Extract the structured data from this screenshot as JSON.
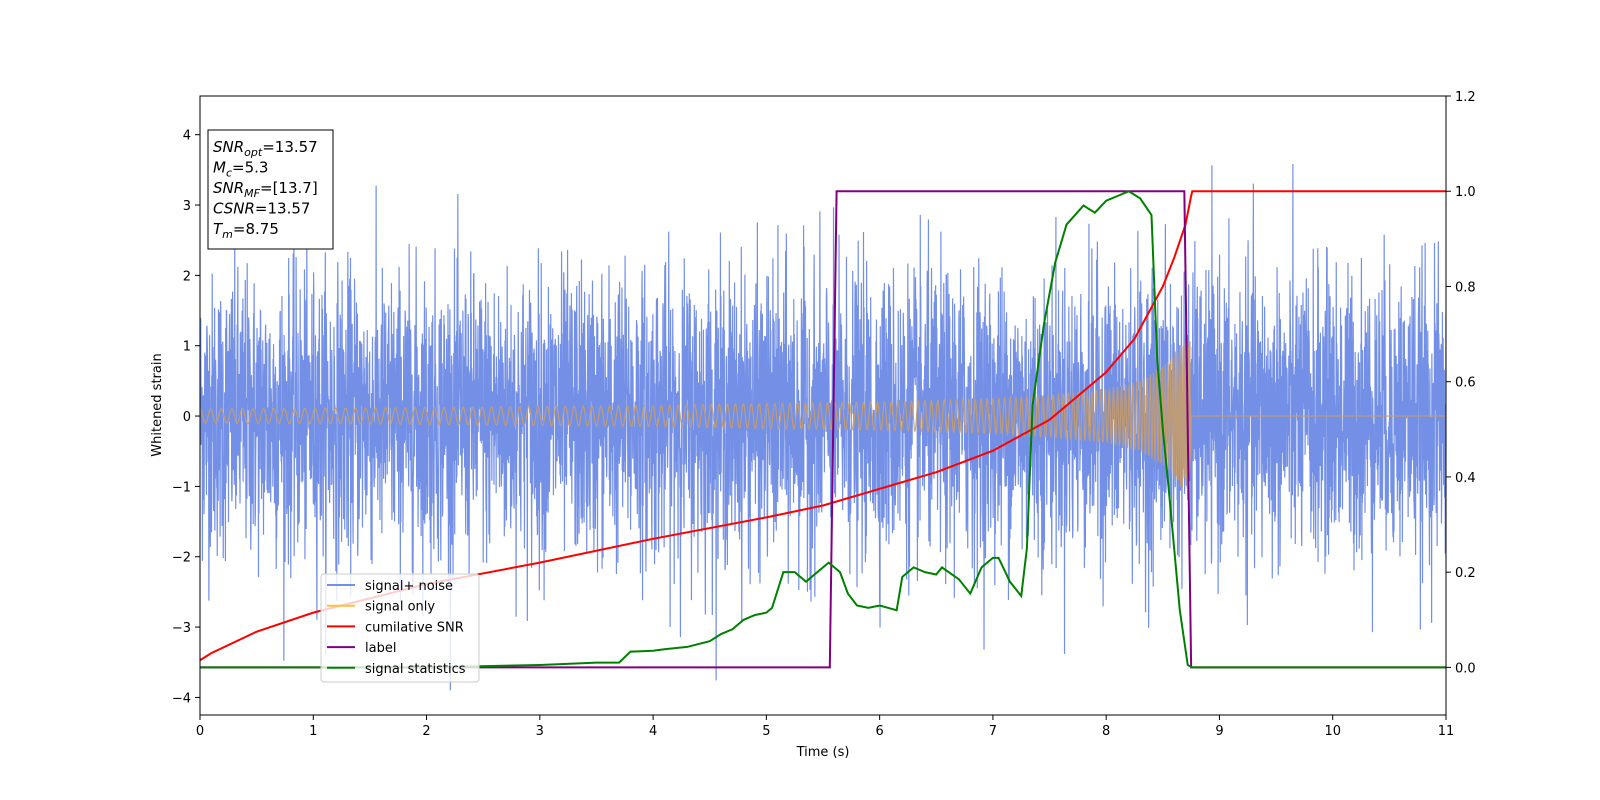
{
  "chart_data": {
    "type": "line",
    "xlabel": "Time (s)",
    "ylabel": "Whitened strain",
    "xlim": [
      0,
      11
    ],
    "ylim": [
      -4.25,
      4.55
    ],
    "y2lim": [
      -0.1,
      1.2
    ],
    "x_ticks": [
      "0",
      "1",
      "2",
      "3",
      "4",
      "5",
      "6",
      "7",
      "8",
      "9",
      "10",
      "11"
    ],
    "y_ticks": [
      "−4",
      "−3",
      "−2",
      "−1",
      "0",
      "1",
      "2",
      "3",
      "4"
    ],
    "y2_ticks": [
      "0.0",
      "0.2",
      "0.4",
      "0.6",
      "0.8",
      "1.0",
      "1.2"
    ],
    "grid": false,
    "legend_position": "lower-left",
    "annotation": {
      "lines": [
        {
          "main": "SNR",
          "sub": "opt",
          "value": "=13.57"
        },
        {
          "main": "M",
          "sub": "c",
          "value": "=5.3"
        },
        {
          "main": "SNR",
          "sub": "MF",
          "value": "=[13.7]"
        },
        {
          "main": "CSNR",
          "sub": "",
          "value": "=13.57"
        },
        {
          "main": "T",
          "sub": "m",
          "value": "=8.75"
        }
      ]
    },
    "series": [
      {
        "name": "signal+ noise",
        "axis": "left",
        "color": "#7390e6",
        "kind": "noise",
        "amplitude": 1.0,
        "x_range": [
          0,
          11
        ]
      },
      {
        "name": "signal only",
        "axis": "left",
        "color": "#c69c6d",
        "kind": "chirp",
        "amplitude_envelope": {
          "x": [
            0,
            2,
            4,
            5,
            6,
            7,
            7.5,
            8,
            8.3,
            8.5,
            8.65,
            8.75,
            8.76,
            11
          ],
          "y": [
            0.1,
            0.12,
            0.15,
            0.18,
            0.2,
            0.25,
            0.3,
            0.38,
            0.5,
            0.7,
            1.0,
            1.1,
            0.0,
            0.0
          ]
        }
      },
      {
        "name": "cumilative SNR",
        "axis": "right",
        "color": "#ff0000",
        "x": [
          0,
          0.1,
          0.5,
          1,
          2,
          3,
          4,
          5,
          5.5,
          6,
          6.5,
          7,
          7.5,
          8,
          8.25,
          8.5,
          8.6,
          8.7,
          8.75,
          8.76,
          11
        ],
        "y": [
          0.015,
          0.03,
          0.075,
          0.115,
          0.175,
          0.22,
          0.27,
          0.315,
          0.34,
          0.375,
          0.41,
          0.455,
          0.52,
          0.62,
          0.69,
          0.8,
          0.86,
          0.93,
          0.99,
          1.0,
          1.0
        ]
      },
      {
        "name": "label",
        "axis": "right",
        "color": "#800080",
        "x": [
          0,
          5.56,
          5.62,
          8.69,
          8.75,
          11
        ],
        "y": [
          0.0,
          0.0,
          1.0,
          1.0,
          0.0,
          0.0
        ]
      },
      {
        "name": "signal statistics",
        "axis": "right",
        "color": "#008000",
        "x": [
          0,
          2,
          3,
          3.5,
          3.7,
          3.8,
          4.0,
          4.1,
          4.3,
          4.5,
          4.6,
          4.7,
          4.8,
          4.9,
          5.0,
          5.05,
          5.15,
          5.25,
          5.35,
          5.45,
          5.55,
          5.65,
          5.72,
          5.8,
          5.9,
          6.0,
          6.15,
          6.2,
          6.3,
          6.4,
          6.5,
          6.55,
          6.7,
          6.8,
          6.9,
          7.0,
          7.05,
          7.15,
          7.25,
          7.3,
          7.35,
          7.45,
          7.55,
          7.65,
          7.8,
          7.9,
          8.0,
          8.1,
          8.2,
          8.3,
          8.4,
          8.45,
          8.5,
          8.55,
          8.65,
          8.72,
          8.76,
          11
        ],
        "y": [
          0.0,
          0.0,
          0.005,
          0.01,
          0.01,
          0.033,
          0.035,
          0.038,
          0.043,
          0.055,
          0.07,
          0.08,
          0.1,
          0.11,
          0.115,
          0.125,
          0.2,
          0.2,
          0.18,
          0.2,
          0.22,
          0.2,
          0.155,
          0.13,
          0.125,
          0.13,
          0.12,
          0.19,
          0.21,
          0.2,
          0.195,
          0.21,
          0.185,
          0.155,
          0.21,
          0.23,
          0.23,
          0.18,
          0.15,
          0.25,
          0.55,
          0.72,
          0.85,
          0.93,
          0.97,
          0.955,
          0.98,
          0.99,
          1.0,
          0.985,
          0.95,
          0.65,
          0.5,
          0.38,
          0.12,
          0.005,
          0.0,
          0.0
        ]
      }
    ]
  }
}
